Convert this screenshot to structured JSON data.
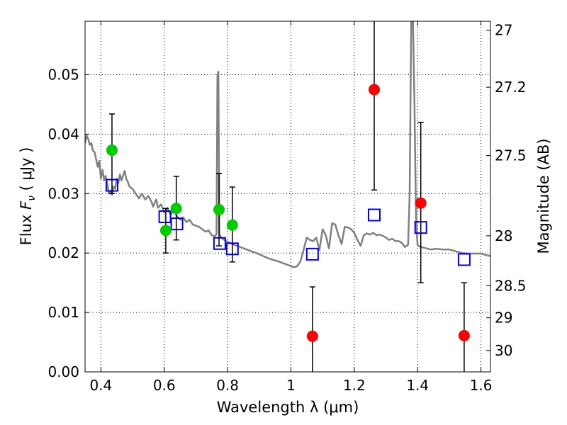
{
  "chart_data": {
    "type": "scatter",
    "xlabel": "Wavelength  λ (μm)",
    "ylabel_left_prefix": "Flux  ",
    "ylabel_left_symbol": "F",
    "ylabel_left_subscript": "ν",
    "ylabel_left_suffix": "  ( μJy )",
    "ylabel_right": "Magnitude (AB)",
    "xlim": [
      0.35,
      1.63
    ],
    "ylim": [
      0.0,
      0.059
    ],
    "grid": true,
    "x_ticks": [
      {
        "value": 0.4,
        "label": "0.4"
      },
      {
        "value": 0.6,
        "label": "0.6"
      },
      {
        "value": 0.8,
        "label": "0.8"
      },
      {
        "value": 1.0,
        "label": "1"
      },
      {
        "value": 1.2,
        "label": "1.2"
      },
      {
        "value": 1.4,
        "label": "1.4"
      },
      {
        "value": 1.6,
        "label": "1.6"
      }
    ],
    "y_ticks": [
      {
        "value": 0.0,
        "label": "0.00"
      },
      {
        "value": 0.01,
        "label": "0.01"
      },
      {
        "value": 0.02,
        "label": "0.02"
      },
      {
        "value": 0.03,
        "label": "0.03"
      },
      {
        "value": 0.04,
        "label": "0.04"
      },
      {
        "value": 0.05,
        "label": "0.05"
      }
    ],
    "right_ticks": [
      {
        "flux": 0.0575,
        "label": "27"
      },
      {
        "flux": 0.0479,
        "label": "27.2"
      },
      {
        "flux": 0.0364,
        "label": "27.5"
      },
      {
        "flux": 0.0229,
        "label": "28"
      },
      {
        "flux": 0.0145,
        "label": "28.5"
      },
      {
        "flux": 0.0091,
        "label": "29"
      },
      {
        "flux": 0.0036,
        "label": "30"
      }
    ],
    "series": [
      {
        "kind": "line",
        "color": "#808080",
        "points": [
          [
            0.35,
            0.0385
          ],
          [
            0.355,
            0.0398
          ],
          [
            0.36,
            0.0392
          ],
          [
            0.365,
            0.0382
          ],
          [
            0.37,
            0.0385
          ],
          [
            0.375,
            0.0372
          ],
          [
            0.38,
            0.037
          ],
          [
            0.385,
            0.0358
          ],
          [
            0.39,
            0.0345
          ],
          [
            0.395,
            0.0355
          ],
          [
            0.4,
            0.0325
          ],
          [
            0.405,
            0.034
          ],
          [
            0.41,
            0.0322
          ],
          [
            0.415,
            0.033
          ],
          [
            0.42,
            0.0318
          ],
          [
            0.425,
            0.03
          ],
          [
            0.43,
            0.0305
          ],
          [
            0.435,
            0.0298
          ],
          [
            0.44,
            0.0312
          ],
          [
            0.445,
            0.0308
          ],
          [
            0.45,
            0.0325
          ],
          [
            0.455,
            0.0318
          ],
          [
            0.46,
            0.0332
          ],
          [
            0.465,
            0.0322
          ],
          [
            0.47,
            0.033
          ],
          [
            0.475,
            0.0338
          ],
          [
            0.48,
            0.0325
          ],
          [
            0.485,
            0.032
          ],
          [
            0.49,
            0.0312
          ],
          [
            0.5,
            0.0308
          ],
          [
            0.51,
            0.03
          ],
          [
            0.52,
            0.0292
          ],
          [
            0.53,
            0.03
          ],
          [
            0.54,
            0.029
          ],
          [
            0.55,
            0.0296
          ],
          [
            0.56,
            0.0286
          ],
          [
            0.565,
            0.0278
          ],
          [
            0.57,
            0.0285
          ],
          [
            0.575,
            0.029
          ],
          [
            0.58,
            0.0276
          ],
          [
            0.59,
            0.0282
          ],
          [
            0.6,
            0.0268
          ],
          [
            0.61,
            0.0276
          ],
          [
            0.62,
            0.0264
          ],
          [
            0.63,
            0.0272
          ],
          [
            0.64,
            0.0262
          ],
          [
            0.65,
            0.0256
          ],
          [
            0.66,
            0.026
          ],
          [
            0.67,
            0.0252
          ],
          [
            0.68,
            0.0256
          ],
          [
            0.69,
            0.0248
          ],
          [
            0.7,
            0.0246
          ],
          [
            0.71,
            0.0244
          ],
          [
            0.72,
            0.024
          ],
          [
            0.73,
            0.0236
          ],
          [
            0.74,
            0.0238
          ],
          [
            0.75,
            0.023
          ],
          [
            0.76,
            0.0228
          ],
          [
            0.765,
            0.0232
          ],
          [
            0.768,
            0.05
          ],
          [
            0.771,
            0.0505
          ],
          [
            0.774,
            0.0232
          ],
          [
            0.78,
            0.0226
          ],
          [
            0.79,
            0.0222
          ],
          [
            0.8,
            0.0219
          ],
          [
            0.82,
            0.0214
          ],
          [
            0.84,
            0.021
          ],
          [
            0.86,
            0.0206
          ],
          [
            0.88,
            0.0202
          ],
          [
            0.9,
            0.0198
          ],
          [
            0.92,
            0.0193
          ],
          [
            0.94,
            0.0189
          ],
          [
            0.96,
            0.0186
          ],
          [
            0.98,
            0.0182
          ],
          [
            1.0,
            0.0178
          ],
          [
            1.01,
            0.0176
          ],
          [
            1.02,
            0.0178
          ],
          [
            1.03,
            0.0186
          ],
          [
            1.04,
            0.0205
          ],
          [
            1.05,
            0.0226
          ],
          [
            1.06,
            0.0222
          ],
          [
            1.07,
            0.022
          ],
          [
            1.08,
            0.0226
          ],
          [
            1.09,
            0.0205
          ],
          [
            1.1,
            0.024
          ],
          [
            1.11,
            0.023
          ],
          [
            1.12,
            0.0208
          ],
          [
            1.13,
            0.025
          ],
          [
            1.14,
            0.0248
          ],
          [
            1.15,
            0.023
          ],
          [
            1.16,
            0.0215
          ],
          [
            1.17,
            0.0244
          ],
          [
            1.18,
            0.0243
          ],
          [
            1.19,
            0.024
          ],
          [
            1.2,
            0.0234
          ],
          [
            1.21,
            0.0222
          ],
          [
            1.22,
            0.0212
          ],
          [
            1.23,
            0.023
          ],
          [
            1.24,
            0.0233
          ],
          [
            1.25,
            0.0231
          ],
          [
            1.26,
            0.0234
          ],
          [
            1.27,
            0.023
          ],
          [
            1.28,
            0.0231
          ],
          [
            1.29,
            0.0229
          ],
          [
            1.3,
            0.0226
          ],
          [
            1.31,
            0.0222
          ],
          [
            1.32,
            0.0224
          ],
          [
            1.33,
            0.022
          ],
          [
            1.34,
            0.022
          ],
          [
            1.35,
            0.0217
          ],
          [
            1.36,
            0.021
          ],
          [
            1.37,
            0.0214
          ],
          [
            1.375,
            0.03
          ],
          [
            1.38,
            0.06
          ],
          [
            1.385,
            0.06
          ],
          [
            1.39,
            0.045
          ],
          [
            1.395,
            0.026
          ],
          [
            1.4,
            0.0213
          ],
          [
            1.41,
            0.021
          ],
          [
            1.42,
            0.0209
          ],
          [
            1.44,
            0.0206
          ],
          [
            1.46,
            0.0207
          ],
          [
            1.48,
            0.0206
          ],
          [
            1.5,
            0.0206
          ],
          [
            1.52,
            0.0203
          ],
          [
            1.54,
            0.02
          ],
          [
            1.56,
            0.0199
          ],
          [
            1.58,
            0.0199
          ],
          [
            1.6,
            0.0199
          ],
          [
            1.62,
            0.0196
          ],
          [
            1.63,
            0.0195
          ]
        ]
      },
      {
        "kind": "squares",
        "color": "#0000ff",
        "points": [
          [
            0.435,
            0.0314
          ],
          [
            0.602,
            0.0261
          ],
          [
            0.64,
            0.0249
          ],
          [
            0.775,
            0.0216
          ],
          [
            0.815,
            0.0207
          ],
          [
            1.068,
            0.0198
          ],
          [
            1.263,
            0.0264
          ],
          [
            1.41,
            0.0243
          ],
          [
            1.547,
            0.0189
          ]
        ]
      },
      {
        "kind": "points_with_errors",
        "color": "#00cc00",
        "points": [
          {
            "x": 0.435,
            "y": 0.0373,
            "lo": 0.03,
            "hi": 0.0434
          },
          {
            "x": 0.605,
            "y": 0.0238,
            "lo": 0.02,
            "hi": 0.0275
          },
          {
            "x": 0.638,
            "y": 0.0275,
            "lo": 0.0222,
            "hi": 0.0329
          },
          {
            "x": 0.773,
            "y": 0.0273,
            "lo": 0.0212,
            "hi": 0.0334
          },
          {
            "x": 0.815,
            "y": 0.0247,
            "lo": 0.0185,
            "hi": 0.0311
          }
        ]
      },
      {
        "kind": "points_with_errors",
        "color": "#ff0000",
        "points": [
          {
            "x": 1.068,
            "y": 0.006,
            "lo": 0.0,
            "hi": 0.0143
          },
          {
            "x": 1.263,
            "y": 0.0475,
            "lo": 0.0306,
            "hi": 0.06
          },
          {
            "x": 1.41,
            "y": 0.0284,
            "lo": 0.015,
            "hi": 0.042
          },
          {
            "x": 1.547,
            "y": 0.0061,
            "lo": 0.0,
            "hi": 0.015
          }
        ]
      }
    ]
  }
}
